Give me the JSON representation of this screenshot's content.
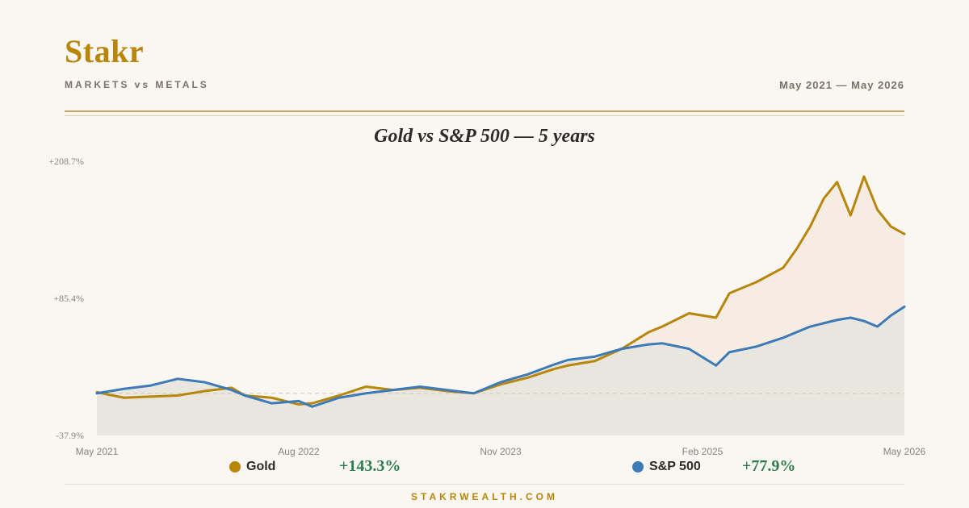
{
  "header": {
    "brand": "Stakr",
    "subtitle": "MARKETS vs METALS",
    "date_range": "May 2021 — May 2026"
  },
  "legend": [
    {
      "name": "Gold",
      "return": "+143.3%",
      "color": "#b8860b"
    },
    {
      "name": "S&P 500",
      "return": "+77.9%",
      "color": "#3d7ab8"
    }
  ],
  "footer": "STAKRWEALTH.COM",
  "chart_data": {
    "type": "line",
    "title": "Gold vs S&P 500 — 5 years",
    "xlabel": "",
    "ylabel": "",
    "x_ticks": [
      "May 2021",
      "Aug 2022",
      "Nov 2023",
      "Feb 2025",
      "May 2026"
    ],
    "y_ticks": [
      "+208.7%",
      "+85.4%",
      "-37.9%"
    ],
    "ylim": [
      -37.9,
      208.7
    ],
    "xlim": [
      "2021-05",
      "2026-05"
    ],
    "baseline": 0,
    "grid": false,
    "series": [
      {
        "name": "Gold",
        "color": "#b8860b",
        "x": [
          "2021-05",
          "2021-07",
          "2021-09",
          "2021-11",
          "2022-01",
          "2022-03",
          "2022-04",
          "2022-06",
          "2022-08",
          "2022-09",
          "2022-11",
          "2023-01",
          "2023-03",
          "2023-05",
          "2023-07",
          "2023-09",
          "2023-11",
          "2024-01",
          "2024-03",
          "2024-04",
          "2024-06",
          "2024-08",
          "2024-10",
          "2024-11",
          "2025-01",
          "2025-03",
          "2025-04",
          "2025-06",
          "2025-08",
          "2025-09",
          "2025-10",
          "2025-11",
          "2025-12",
          "2026-01",
          "2026-02",
          "2026-03",
          "2026-04",
          "2026-05"
        ],
        "values": [
          1,
          -4,
          -3,
          -2,
          2,
          5,
          -2,
          -4,
          -10,
          -9,
          -2,
          6,
          3,
          5,
          2,
          0,
          8,
          14,
          22,
          25,
          29,
          40,
          55,
          60,
          72,
          68,
          90,
          100,
          113,
          130,
          150,
          175,
          190,
          160,
          195,
          165,
          150,
          143.3
        ]
      },
      {
        "name": "S&P 500",
        "color": "#3d7ab8",
        "x": [
          "2021-05",
          "2021-07",
          "2021-09",
          "2021-11",
          "2022-01",
          "2022-03",
          "2022-04",
          "2022-06",
          "2022-08",
          "2022-09",
          "2022-11",
          "2023-01",
          "2023-03",
          "2023-05",
          "2023-07",
          "2023-09",
          "2023-11",
          "2024-01",
          "2024-03",
          "2024-04",
          "2024-06",
          "2024-08",
          "2024-10",
          "2024-11",
          "2025-01",
          "2025-03",
          "2025-04",
          "2025-06",
          "2025-08",
          "2025-09",
          "2025-10",
          "2025-11",
          "2025-12",
          "2026-01",
          "2026-02",
          "2026-03",
          "2026-04",
          "2026-05"
        ],
        "values": [
          0,
          4,
          7,
          13,
          10,
          3,
          -2,
          -9,
          -7,
          -12,
          -4,
          0,
          3,
          6,
          3,
          0,
          10,
          17,
          26,
          30,
          33,
          40,
          44,
          45,
          40,
          25,
          37,
          42,
          50,
          55,
          60,
          63,
          66,
          68,
          65,
          60,
          70,
          77.9
        ]
      }
    ]
  }
}
